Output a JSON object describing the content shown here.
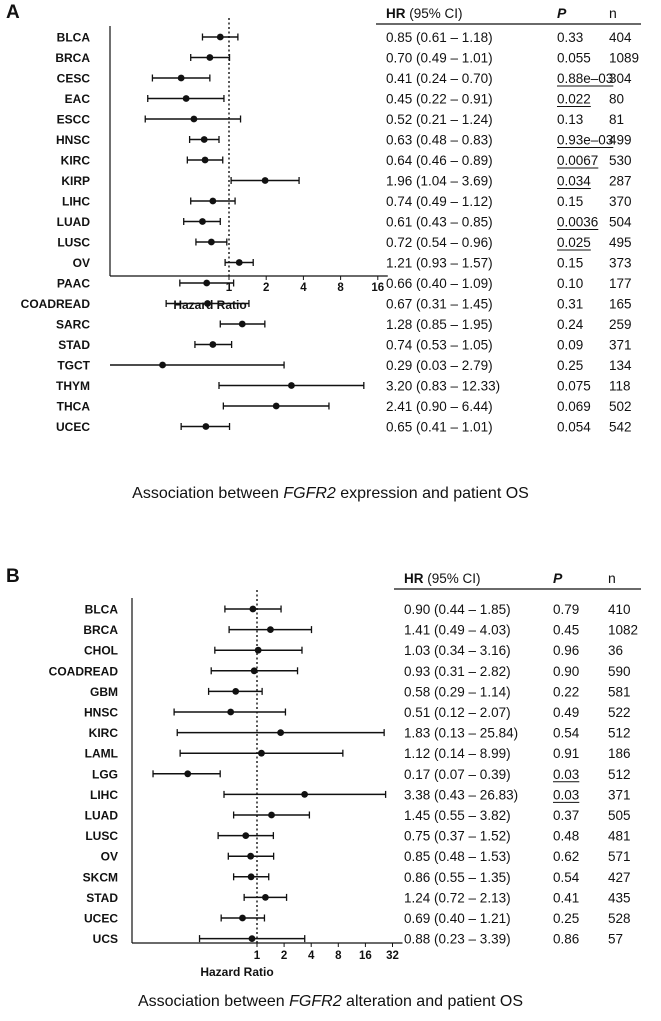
{
  "chart_data": [
    {
      "panel_label": "A",
      "type": "forest",
      "xlabel": "Hazard Ratio",
      "scale": "log2",
      "reference_line": 1,
      "xlim": [
        0.06,
        16
      ],
      "x_ticks": [
        "1",
        "2",
        "4",
        "8",
        "16"
      ],
      "columns": {
        "hr": "HR",
        "hr_suffix": "(95% CI)",
        "p": "P",
        "n": "n"
      },
      "caption": {
        "before": "Association between ",
        "gene": "FGFR2",
        "after": " expression and patient OS"
      },
      "rows": [
        {
          "label": "BLCA",
          "hr": 0.85,
          "lo": 0.61,
          "hi": 1.18,
          "hr_text": "0.85 (0.61 – 1.18)",
          "p": "0.33",
          "p_sig": false,
          "n": "404"
        },
        {
          "label": "BRCA",
          "hr": 0.7,
          "lo": 0.49,
          "hi": 1.01,
          "hr_text": "0.70 (0.49 – 1.01)",
          "p": "0.055",
          "p_sig": false,
          "n": "1089"
        },
        {
          "label": "CESC",
          "hr": 0.41,
          "lo": 0.24,
          "hi": 0.7,
          "hr_text": "0.41 (0.24 – 0.70)",
          "p": "0.88e–03",
          "p_sig": true,
          "n": "304"
        },
        {
          "label": "EAC",
          "hr": 0.45,
          "lo": 0.22,
          "hi": 0.91,
          "hr_text": "0.45 (0.22 – 0.91)",
          "p": "0.022",
          "p_sig": true,
          "n": "80"
        },
        {
          "label": "ESCC",
          "hr": 0.52,
          "lo": 0.21,
          "hi": 1.24,
          "hr_text": "0.52 (0.21 – 1.24)",
          "p": "0.13",
          "p_sig": false,
          "n": "81"
        },
        {
          "label": "HNSC",
          "hr": 0.63,
          "lo": 0.48,
          "hi": 0.83,
          "hr_text": "0.63 (0.48 – 0.83)",
          "p": "0.93e–03",
          "p_sig": true,
          "n": "499"
        },
        {
          "label": "KIRC",
          "hr": 0.64,
          "lo": 0.46,
          "hi": 0.89,
          "hr_text": "0.64 (0.46 – 0.89)",
          "p": "0.0067",
          "p_sig": true,
          "n": "530"
        },
        {
          "label": "KIRP",
          "hr": 1.96,
          "lo": 1.04,
          "hi": 3.69,
          "hr_text": "1.96 (1.04 – 3.69)",
          "p": "0.034",
          "p_sig": true,
          "n": "287"
        },
        {
          "label": "LIHC",
          "hr": 0.74,
          "lo": 0.49,
          "hi": 1.12,
          "hr_text": "0.74 (0.49 – 1.12)",
          "p": "0.15",
          "p_sig": false,
          "n": "370"
        },
        {
          "label": "LUAD",
          "hr": 0.61,
          "lo": 0.43,
          "hi": 0.85,
          "hr_text": "0.61 (0.43 – 0.85)",
          "p": "0.0036",
          "p_sig": true,
          "n": "504"
        },
        {
          "label": "LUSC",
          "hr": 0.72,
          "lo": 0.54,
          "hi": 0.96,
          "hr_text": "0.72 (0.54 – 0.96)",
          "p": "0.025",
          "p_sig": true,
          "n": "495"
        },
        {
          "label": "OV",
          "hr": 1.21,
          "lo": 0.93,
          "hi": 1.57,
          "hr_text": "1.21 (0.93 – 1.57)",
          "p": "0.15",
          "p_sig": false,
          "n": "373"
        },
        {
          "label": "PAAC",
          "hr": 0.66,
          "lo": 0.4,
          "hi": 1.09,
          "hr_text": "0.66 (0.40 – 1.09)",
          "p": "0.10",
          "p_sig": false,
          "n": "177"
        },
        {
          "label": "COADREAD",
          "hr": 0.67,
          "lo": 0.31,
          "hi": 1.45,
          "hr_text": "0.67 (0.31 – 1.45)",
          "p": "0.31",
          "p_sig": false,
          "n": "165"
        },
        {
          "label": "SARC",
          "hr": 1.28,
          "lo": 0.85,
          "hi": 1.95,
          "hr_text": "1.28 (0.85 – 1.95)",
          "p": "0.24",
          "p_sig": false,
          "n": "259"
        },
        {
          "label": "STAD",
          "hr": 0.74,
          "lo": 0.53,
          "hi": 1.05,
          "hr_text": "0.74 (0.53 – 1.05)",
          "p": "0.09",
          "p_sig": false,
          "n": "371"
        },
        {
          "label": "TGCT",
          "hr": 0.29,
          "lo": 0.03,
          "hi": 2.79,
          "hr_text": "0.29 (0.03 – 2.79)",
          "p": "0.25",
          "p_sig": false,
          "n": "134"
        },
        {
          "label": "THYM",
          "hr": 3.2,
          "lo": 0.83,
          "hi": 12.33,
          "hr_text": "3.20 (0.83 – 12.33)",
          "p": "0.075",
          "p_sig": false,
          "n": "118"
        },
        {
          "label": "THCA",
          "hr": 2.41,
          "lo": 0.9,
          "hi": 6.44,
          "hr_text": "2.41 (0.90 – 6.44)",
          "p": "0.069",
          "p_sig": false,
          "n": "502"
        },
        {
          "label": "UCEC",
          "hr": 0.65,
          "lo": 0.41,
          "hi": 1.01,
          "hr_text": "0.65 (0.41 – 1.01)",
          "p": "0.054",
          "p_sig": false,
          "n": "542"
        }
      ]
    },
    {
      "panel_label": "B",
      "type": "forest",
      "xlabel": "Hazard Ratio",
      "scale": "log2",
      "reference_line": 1,
      "xlim": [
        0.05,
        32
      ],
      "x_ticks": [
        "1",
        "2",
        "4",
        "8",
        "16",
        "32"
      ],
      "columns": {
        "hr": "HR",
        "hr_suffix": "(95% CI)",
        "p": "P",
        "n": "n"
      },
      "caption": {
        "before": "Association between ",
        "gene": "FGFR2",
        "after": " alteration  and patient OS"
      },
      "rows": [
        {
          "label": "BLCA",
          "hr": 0.9,
          "lo": 0.44,
          "hi": 1.85,
          "hr_text": "0.90 (0.44 – 1.85)",
          "p": "0.79",
          "p_sig": false,
          "n": "410"
        },
        {
          "label": "BRCA",
          "hr": 1.41,
          "lo": 0.49,
          "hi": 4.03,
          "hr_text": "1.41 (0.49 – 4.03)",
          "p": "0.45",
          "p_sig": false,
          "n": "1082"
        },
        {
          "label": "CHOL",
          "hr": 1.03,
          "lo": 0.34,
          "hi": 3.16,
          "hr_text": "1.03 (0.34 – 3.16)",
          "p": "0.96",
          "p_sig": false,
          "n": "36"
        },
        {
          "label": "COADREAD",
          "hr": 0.93,
          "lo": 0.31,
          "hi": 2.82,
          "hr_text": "0.93 (0.31 – 2.82)",
          "p": "0.90",
          "p_sig": false,
          "n": "590"
        },
        {
          "label": "GBM",
          "hr": 0.58,
          "lo": 0.29,
          "hi": 1.14,
          "hr_text": "0.58 (0.29 – 1.14)",
          "p": "0.22",
          "p_sig": false,
          "n": "581"
        },
        {
          "label": "HNSC",
          "hr": 0.51,
          "lo": 0.12,
          "hi": 2.07,
          "hr_text": "0.51 (0.12 – 2.07)",
          "p": "0.49",
          "p_sig": false,
          "n": "522"
        },
        {
          "label": "KIRC",
          "hr": 1.83,
          "lo": 0.13,
          "hi": 25.84,
          "hr_text": "1.83 (0.13 – 25.84)",
          "p": "0.54",
          "p_sig": false,
          "n": "512"
        },
        {
          "label": "LAML",
          "hr": 1.12,
          "lo": 0.14,
          "hi": 8.99,
          "hr_text": "1.12 (0.14 – 8.99)",
          "p": "0.91",
          "p_sig": false,
          "n": "186"
        },
        {
          "label": "LGG",
          "hr": 0.17,
          "lo": 0.07,
          "hi": 0.39,
          "hr_text": "0.17 (0.07 – 0.39)",
          "p": "0.03",
          "p_sig": true,
          "n": "512"
        },
        {
          "label": "LIHC",
          "hr": 3.38,
          "lo": 0.43,
          "hi": 26.83,
          "hr_text": "3.38 (0.43 – 26.83)",
          "p": "0.03",
          "p_sig": true,
          "n": "371"
        },
        {
          "label": "LUAD",
          "hr": 1.45,
          "lo": 0.55,
          "hi": 3.82,
          "hr_text": "1.45 (0.55 – 3.82)",
          "p": "0.37",
          "p_sig": false,
          "n": "505"
        },
        {
          "label": "LUSC",
          "hr": 0.75,
          "lo": 0.37,
          "hi": 1.52,
          "hr_text": "0.75 (0.37 – 1.52)",
          "p": "0.48",
          "p_sig": false,
          "n": "481"
        },
        {
          "label": "OV",
          "hr": 0.85,
          "lo": 0.48,
          "hi": 1.53,
          "hr_text": "0.85 (0.48 – 1.53)",
          "p": "0.62",
          "p_sig": false,
          "n": "571"
        },
        {
          "label": "SKCM",
          "hr": 0.86,
          "lo": 0.55,
          "hi": 1.35,
          "hr_text": "0.86 (0.55 – 1.35)",
          "p": "0.54",
          "p_sig": false,
          "n": "427"
        },
        {
          "label": "STAD",
          "hr": 1.24,
          "lo": 0.72,
          "hi": 2.13,
          "hr_text": "1.24 (0.72 – 2.13)",
          "p": "0.41",
          "p_sig": false,
          "n": "435"
        },
        {
          "label": "UCEC",
          "hr": 0.69,
          "lo": 0.4,
          "hi": 1.21,
          "hr_text": "0.69 (0.40 – 1.21)",
          "p": "0.25",
          "p_sig": false,
          "n": "528"
        },
        {
          "label": "UCS",
          "hr": 0.88,
          "lo": 0.23,
          "hi": 3.39,
          "hr_text": "0.88 (0.23 – 3.39)",
          "p": "0.86",
          "p_sig": false,
          "n": "57"
        }
      ]
    }
  ]
}
